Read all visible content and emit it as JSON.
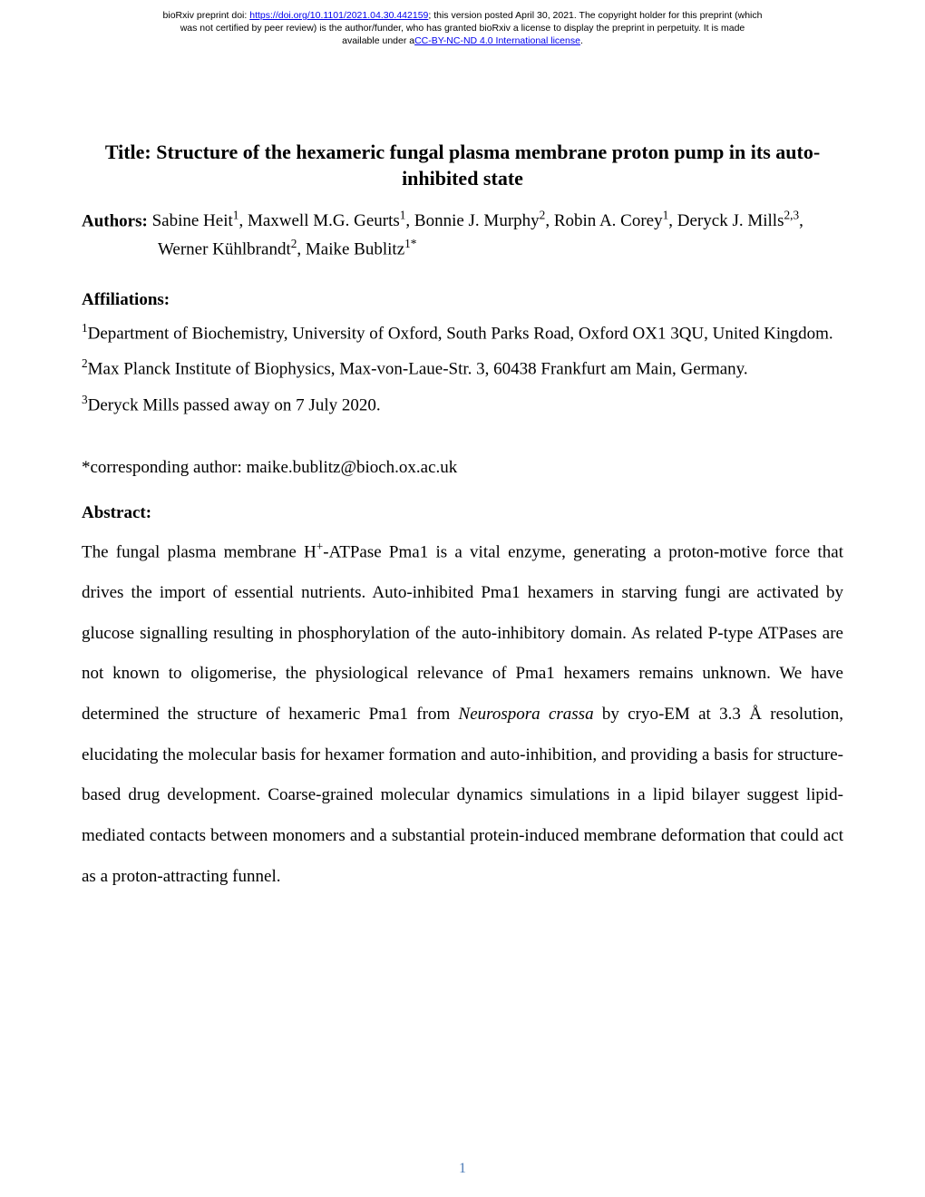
{
  "preprint": {
    "line1_prefix": "bioRxiv preprint doi: ",
    "doi_url": "https://doi.org/10.1101/2021.04.30.442159",
    "line1_suffix": "; this version posted April 30, 2021. The copyright holder for this preprint (which",
    "line2": "was not certified by peer review) is the author/funder, who has granted bioRxiv a license to display the preprint in perpetuity. It is made",
    "line3_prefix": "available under a",
    "license_text": "CC-BY-NC-ND 4.0 International license",
    "line3_suffix": "."
  },
  "title": "Title: Structure of the hexameric fungal plasma membrane proton pump in its auto-inhibited state",
  "authors": {
    "label": "Authors: ",
    "line1_html": "Sabine Heit<sup>1</sup>, Maxwell M.G. Geurts<sup>1</sup>, Bonnie J. Murphy<sup>2</sup>, Robin A. Corey<sup>1</sup>, Deryck J. Mills<sup>2,3</sup>,",
    "line2_html": "Werner Kühlbrandt<sup>2</sup>, Maike Bublitz<sup>1*</sup>"
  },
  "affiliations": {
    "heading": "Affiliations:",
    "items": [
      "<sup>1</sup>Department of Biochemistry, University of Oxford, South Parks Road, Oxford OX1 3QU, United Kingdom.",
      "<sup>2</sup>Max Planck Institute of Biophysics, Max-von-Laue-Str. 3, 60438 Frankfurt am Main, Germany.",
      "<sup>3</sup>Deryck Mills passed away on 7 July 2020."
    ]
  },
  "corresponding": "*corresponding author: maike.bublitz@bioch.ox.ac.uk",
  "abstract": {
    "heading": "Abstract:",
    "body_html": "The fungal plasma membrane H<sup>+</sup>-ATPase Pma1 is a vital enzyme, generating a proton-motive force that drives the import of essential nutrients. Auto-inhibited Pma1 hexamers in starving fungi are activated by glucose signalling resulting in phosphorylation of the auto-inhibitory domain. As related P-type ATPases are not known to oligomerise, the physiological relevance of Pma1 hexamers remains unknown. We have determined the structure of hexameric Pma1 from <em>Neurospora crassa</em> by cryo-EM at 3.3 Å resolution, elucidating the molecular basis for hexamer formation and auto-inhibition, and providing a basis for structure-based drug development. Coarse-grained molecular dynamics simulations in a lipid bilayer suggest lipid-mediated contacts between monomers and a substantial protein-induced membrane deformation that could act as a proton-attracting funnel."
  },
  "page_number": "1",
  "colors": {
    "link": "#0000ee",
    "page_number": "#4a7ab6",
    "background": "#ffffff",
    "text": "#000000"
  },
  "typography": {
    "body_family": "Times New Roman",
    "header_family": "Arial",
    "title_pt": 16.5,
    "body_pt": 14,
    "header_pt": 8
  }
}
